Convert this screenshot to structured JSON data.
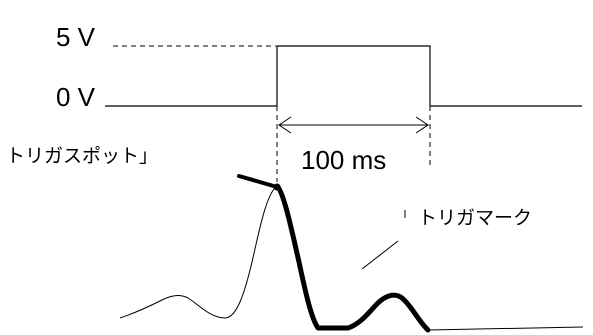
{
  "labels": {
    "high_voltage": "5 V",
    "low_voltage": "0 V",
    "pulse_duration": "100 ms",
    "trigger_spot": "トリガスポット」",
    "trigger_mark": "トリガマーク"
  },
  "colors": {
    "stroke": "#000000",
    "background": "#ffffff"
  }
}
